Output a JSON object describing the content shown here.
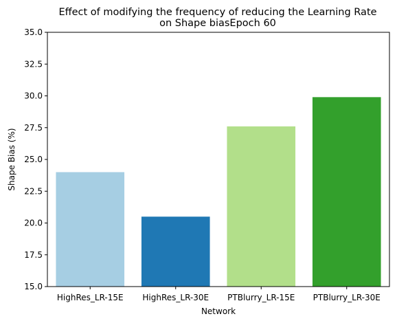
{
  "chart_data": {
    "type": "bar",
    "title_lines": [
      "Effect of modifying the frequency of reducing the Learning Rate",
      "on Shape biasEpoch 60"
    ],
    "xlabel": "Network",
    "ylabel": "Shape Bias (%)",
    "categories": [
      "HighRes_LR-15E",
      "HighRes_LR-30E",
      "PTBlurry_LR-15E",
      "PTBlurry_LR-30E"
    ],
    "values": [
      24.0,
      20.5,
      27.6,
      29.9
    ],
    "colors": [
      "#a6cee3",
      "#1f78b4",
      "#b2df8a",
      "#33a02c"
    ],
    "ylim": [
      15.0,
      35.0
    ],
    "yticks": [
      15.0,
      17.5,
      20.0,
      22.5,
      25.0,
      27.5,
      30.0,
      32.5,
      35.0
    ],
    "ytick_labels": [
      "15.0",
      "17.5",
      "20.0",
      "22.5",
      "25.0",
      "27.5",
      "30.0",
      "32.5",
      "35.0"
    ],
    "grid": false,
    "legend": "none"
  }
}
